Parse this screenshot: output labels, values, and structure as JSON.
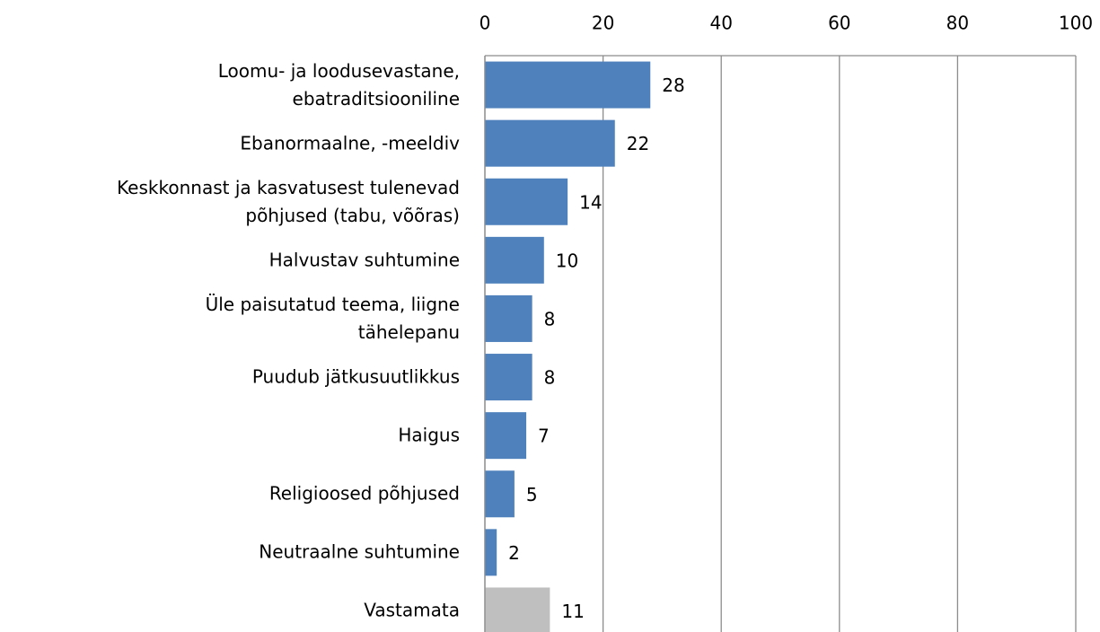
{
  "chart_data": {
    "type": "barh",
    "categories": [
      "Loomu- ja loodusevastane,\nebatraditsiooniline",
      "Ebanormaalne, -meeldiv",
      "Keskkonnast ja kasvatusest tulenevad\npõhjused (tabu, võõras)",
      "Halvustav suhtumine",
      "Üle paisutatud teema, liigne\ntähelepanu",
      "Puudub jätkusuutlikkus",
      "Haigus",
      "Religioosed põhjused",
      "Neutraalne suhtumine",
      "Vastamata"
    ],
    "values": [
      28,
      22,
      14,
      10,
      8,
      8,
      7,
      5,
      2,
      11
    ],
    "colors": [
      "#4f81bd",
      "#4f81bd",
      "#4f81bd",
      "#4f81bd",
      "#4f81bd",
      "#4f81bd",
      "#4f81bd",
      "#4f81bd",
      "#4f81bd",
      "#bfbfbf"
    ],
    "xlim": [
      0,
      100
    ],
    "xticks": [
      0,
      20,
      40,
      60,
      80,
      100
    ],
    "grid": true
  }
}
